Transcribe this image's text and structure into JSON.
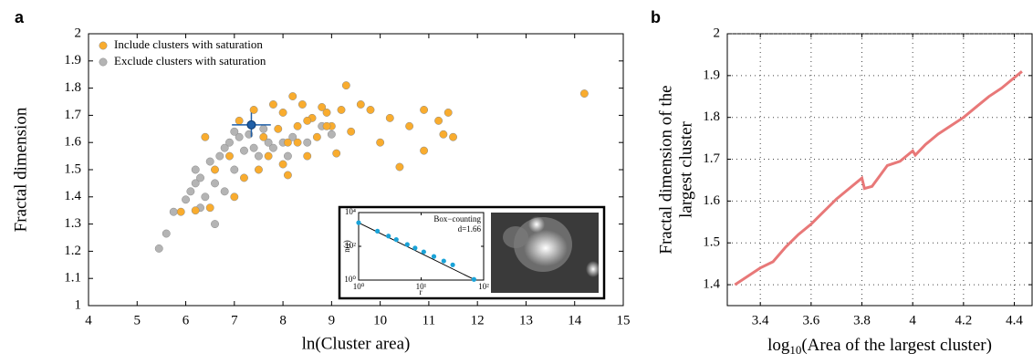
{
  "chart_data": [
    {
      "type": "scatter",
      "title": "a",
      "xlabel": "ln(Cluster area)",
      "ylabel": "Fractal dimension",
      "xlim": [
        4,
        15
      ],
      "ylim": [
        1,
        2
      ],
      "xticks": [
        4,
        5,
        6,
        7,
        8,
        9,
        10,
        11,
        12,
        13,
        14,
        15
      ],
      "yticks": [
        1,
        1.1,
        1.2,
        1.3,
        1.4,
        1.5,
        1.6,
        1.7,
        1.8,
        1.9,
        2
      ],
      "legend": "upper left",
      "series": [
        {
          "name": "Include clusters with saturation",
          "color": "#f9ac2e",
          "x": [
            5.9,
            6.2,
            6.5,
            6.6,
            6.4,
            6.9,
            7.0,
            7.1,
            7.4,
            7.6,
            7.7,
            7.8,
            7.9,
            8.0,
            8.1,
            8.1,
            8.2,
            8.3,
            8.4,
            8.5,
            8.6,
            8.7,
            8.8,
            8.9,
            9.0,
            9.1,
            9.3,
            9.4,
            9.6,
            9.8,
            10.0,
            10.2,
            10.4,
            10.6,
            10.9,
            10.9,
            11.2,
            11.3,
            11.4,
            11.5,
            14.2,
            8.0,
            7.5,
            7.2,
            8.5,
            8.3,
            9.2,
            8.9
          ],
          "values": [
            1.345,
            1.35,
            1.36,
            1.5,
            1.62,
            1.55,
            1.4,
            1.68,
            1.72,
            1.62,
            1.55,
            1.74,
            1.65,
            1.71,
            1.6,
            1.48,
            1.77,
            1.66,
            1.74,
            1.55,
            1.69,
            1.62,
            1.73,
            1.71,
            1.66,
            1.56,
            1.81,
            1.64,
            1.74,
            1.72,
            1.6,
            1.69,
            1.51,
            1.66,
            1.72,
            1.57,
            1.68,
            1.63,
            1.71,
            1.62,
            1.78,
            1.52,
            1.5,
            1.47,
            1.68,
            1.6,
            1.72,
            1.66
          ]
        },
        {
          "name": "Exclude clusters with saturation",
          "color": "#b4b4b4",
          "x": [
            5.45,
            5.6,
            5.75,
            6.0,
            6.1,
            6.2,
            6.3,
            6.4,
            6.5,
            6.6,
            6.6,
            6.7,
            6.8,
            6.9,
            7.0,
            7.1,
            7.2,
            7.3,
            7.4,
            7.5,
            7.6,
            7.8,
            8.0,
            8.2,
            8.5,
            8.8,
            9.0,
            6.3,
            6.8,
            7.0,
            6.2,
            7.7,
            8.1
          ],
          "values": [
            1.21,
            1.265,
            1.345,
            1.39,
            1.42,
            1.45,
            1.47,
            1.4,
            1.53,
            1.45,
            1.3,
            1.55,
            1.58,
            1.6,
            1.5,
            1.62,
            1.57,
            1.63,
            1.58,
            1.55,
            1.65,
            1.58,
            1.6,
            1.62,
            1.6,
            1.66,
            1.63,
            1.36,
            1.42,
            1.64,
            1.5,
            1.6,
            1.55
          ]
        }
      ],
      "highlight": {
        "x": 7.35,
        "value": 1.665,
        "xerr": 0.4,
        "yerr": 0.045,
        "color": "#1f5fa8"
      }
    },
    {
      "type": "loglog",
      "annotation": [
        "Box−counting",
        "d=1.66"
      ],
      "xlabel": "r",
      "ylabel": "n(r)",
      "xlim": [
        1,
        100
      ],
      "ylim": [
        1,
        10000
      ],
      "xticks": [
        {
          "value": 1,
          "label": "10⁰"
        },
        {
          "value": 10,
          "label": "10¹"
        },
        {
          "value": 100,
          "label": "10²"
        }
      ],
      "yticks": [
        {
          "value": 1,
          "label": "10⁰"
        },
        {
          "value": 100,
          "label": "10²"
        },
        {
          "value": 10000,
          "label": "10⁴"
        }
      ],
      "color": "#1aa3d8",
      "x": [
        1,
        2,
        3,
        4,
        6,
        8,
        11,
        16,
        23,
        32,
        70
      ],
      "values": [
        2500,
        790,
        405,
        250,
        128,
        79,
        47,
        25,
        13.5,
        8,
        1.1
      ]
    },
    {
      "type": "line",
      "title": "b",
      "xlabel": [
        "log",
        "10",
        "(Area of the largest cluster)"
      ],
      "ylabel": [
        "Fractal dimension of the",
        "largest cluster"
      ],
      "xlim": [
        3.27,
        4.47
      ],
      "ylim": [
        1.35,
        2
      ],
      "xticks": [
        3.4,
        3.6,
        3.8,
        4,
        4.2,
        4.4
      ],
      "yticks": [
        1.4,
        1.5,
        1.6,
        1.7,
        1.8,
        1.9,
        2
      ],
      "grid": true,
      "color": "#e87878",
      "x": [
        3.3,
        3.35,
        3.4,
        3.45,
        3.5,
        3.55,
        3.6,
        3.65,
        3.7,
        3.75,
        3.8,
        3.81,
        3.84,
        3.87,
        3.9,
        3.95,
        4.0,
        4.01,
        4.05,
        4.1,
        4.15,
        4.2,
        4.25,
        4.3,
        4.35,
        4.4,
        4.43
      ],
      "values": [
        1.4,
        1.42,
        1.44,
        1.455,
        1.49,
        1.52,
        1.545,
        1.575,
        1.605,
        1.63,
        1.655,
        1.63,
        1.635,
        1.66,
        1.685,
        1.695,
        1.72,
        1.71,
        1.735,
        1.76,
        1.78,
        1.8,
        1.825,
        1.85,
        1.87,
        1.895,
        1.91
      ]
    }
  ]
}
